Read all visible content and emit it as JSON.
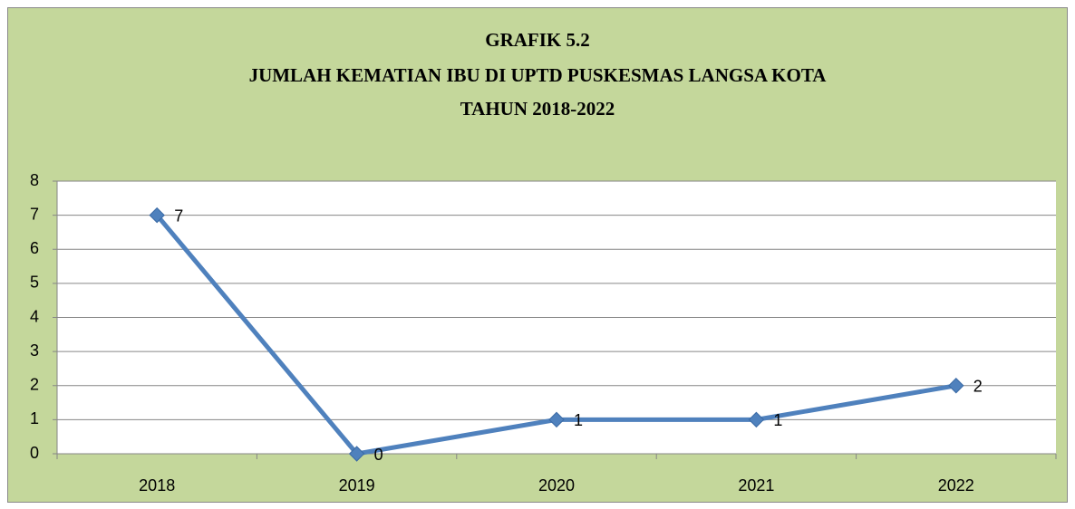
{
  "chart_data": {
    "type": "line",
    "title": [
      "GRAFIK 5.2",
      "JUMLAH KEMATIAN IBU DI UPTD PUSKESMAS LANGSA KOTA",
      "TAHUN 2018-2022"
    ],
    "categories": [
      "2018",
      "2019",
      "2020",
      "2021",
      "2022"
    ],
    "values": [
      7,
      0,
      1,
      1,
      2
    ],
    "color": "#4f81bd",
    "ylim": [
      0,
      8
    ],
    "yticks": [
      0,
      1,
      2,
      3,
      4,
      5,
      6,
      7,
      8
    ],
    "grid": true
  }
}
